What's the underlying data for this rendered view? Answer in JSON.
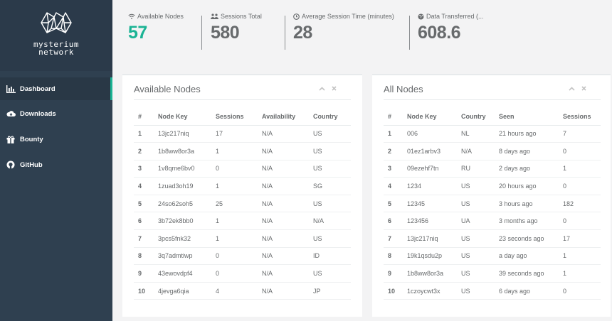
{
  "brand": {
    "line1": "mysterium",
    "line2": "network"
  },
  "sidebar": {
    "items": [
      {
        "label": "Dashboard",
        "icon": "bar-chart-icon",
        "active": true
      },
      {
        "label": "Downloads",
        "icon": "cloud-download-icon",
        "active": false
      },
      {
        "label": "Bounty",
        "icon": "gift-icon",
        "active": false
      },
      {
        "label": "GitHub",
        "icon": "github-icon",
        "active": false
      }
    ]
  },
  "stats": [
    {
      "label": "Available Nodes",
      "icon": "wifi-icon",
      "value": "57"
    },
    {
      "label": "Sessions Total",
      "icon": "users-icon",
      "value": "580"
    },
    {
      "label": "Average Session Time (minutes)",
      "icon": "clock-icon",
      "value": "28"
    },
    {
      "label": "Data Transferred (...",
      "icon": "globe-icon",
      "value": "608.6"
    }
  ],
  "available_nodes": {
    "title": "Available Nodes",
    "columns": [
      "#",
      "Node Key",
      "Sessions",
      "Availability",
      "Country"
    ],
    "rows": [
      [
        "1",
        "13jc217niq",
        "17",
        "N/A",
        "US"
      ],
      [
        "2",
        "1b8ww8or3a",
        "1",
        "N/A",
        "US"
      ],
      [
        "3",
        "1v8qme6bv0",
        "0",
        "N/A",
        "US"
      ],
      [
        "4",
        "1zuad3oh19",
        "1",
        "N/A",
        "SG"
      ],
      [
        "5",
        "24so62soh5",
        "25",
        "N/A",
        "US"
      ],
      [
        "6",
        "3b72ek8bb0",
        "1",
        "N/A",
        "N/A"
      ],
      [
        "7",
        "3pcs5fnk32",
        "1",
        "N/A",
        "US"
      ],
      [
        "8",
        "3q7admtiwp",
        "0",
        "N/A",
        "ID"
      ],
      [
        "9",
        "43ewovdpf4",
        "0",
        "N/A",
        "US"
      ],
      [
        "10",
        "4jevga6qia",
        "4",
        "N/A",
        "JP"
      ]
    ]
  },
  "all_nodes": {
    "title": "All Nodes",
    "columns": [
      "#",
      "Node Key",
      "Country",
      "Seen",
      "Sessions"
    ],
    "rows": [
      [
        "1",
        "006",
        "NL",
        "21 hours ago",
        "7"
      ],
      [
        "2",
        "01ez1arbv3",
        "N/A",
        "8 days ago",
        "0"
      ],
      [
        "3",
        "09ezehf7tn",
        "RU",
        "2 days ago",
        "1"
      ],
      [
        "4",
        "1234",
        "US",
        "20 hours ago",
        "0"
      ],
      [
        "5",
        "12345",
        "US",
        "3 hours ago",
        "182"
      ],
      [
        "6",
        "123456",
        "UA",
        "3 months ago",
        "0"
      ],
      [
        "7",
        "13jc217niq",
        "US",
        "23 seconds ago",
        "17"
      ],
      [
        "8",
        "19k1qsdu2p",
        "US",
        "a day ago",
        "1"
      ],
      [
        "9",
        "1b8ww8or3a",
        "US",
        "39 seconds ago",
        "1"
      ],
      [
        "10",
        "1czoycwt3x",
        "US",
        "6 days ago",
        "0"
      ]
    ]
  },
  "panel_tools": {
    "collapse": "chevron-up-icon",
    "close": "close-icon"
  },
  "colors": {
    "sidebar": "#2f4050",
    "accent": "#1ab394",
    "background": "#f3f3f4"
  }
}
